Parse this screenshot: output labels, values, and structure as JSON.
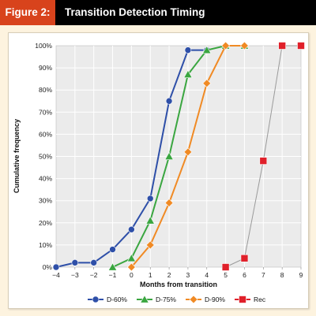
{
  "header": {
    "figure_label": "Figure 2:",
    "title": "Transition Detection Timing"
  },
  "colors": {
    "header_bg": "#000000",
    "badge_bg": "#d8431c",
    "page_bg": "#fdf3df",
    "plot_bg": "#ebebeb",
    "grid": "#ffffff"
  },
  "chart_data": {
    "type": "line",
    "title": "Transition Detection Timing",
    "xlabel": "Months from transition",
    "ylabel": "Cumulative frequency",
    "xlim": [
      -4,
      9
    ],
    "ylim": [
      0,
      100
    ],
    "x_ticks": [
      "−4",
      "−3",
      "−2",
      "−1",
      "0",
      "1",
      "2",
      "3",
      "4",
      "5",
      "6",
      "7",
      "8",
      "9"
    ],
    "y_ticks": [
      "0%",
      "10%",
      "20%",
      "30%",
      "40%",
      "50%",
      "60%",
      "70%",
      "80%",
      "90%",
      "100%"
    ],
    "grid": true,
    "legend_position": "bottom",
    "series": [
      {
        "name": "D-60%",
        "color": "#2e4fa8",
        "marker": "circle",
        "x": [
          -4,
          -3,
          -2,
          -1,
          0,
          1,
          2,
          3,
          4
        ],
        "y": [
          0,
          2,
          2,
          8,
          17,
          31,
          75,
          98,
          98
        ]
      },
      {
        "name": "D-75%",
        "color": "#3aa640",
        "marker": "triangle",
        "x": [
          -1,
          0,
          1,
          2,
          3,
          4,
          5,
          6
        ],
        "y": [
          0,
          4,
          21,
          50,
          87,
          98,
          100,
          100
        ]
      },
      {
        "name": "D-90%",
        "color": "#f08a24",
        "marker": "diamond",
        "x": [
          0,
          1,
          2,
          3,
          4,
          5,
          6
        ],
        "y": [
          0,
          10,
          29,
          52,
          83,
          100,
          100
        ]
      },
      {
        "name": "Rec",
        "color": "#e0202a",
        "line_color": "#9a9a9a",
        "marker": "square",
        "x": [
          5,
          6,
          7,
          8,
          9
        ],
        "y": [
          0,
          4,
          48,
          100,
          100
        ]
      }
    ]
  }
}
